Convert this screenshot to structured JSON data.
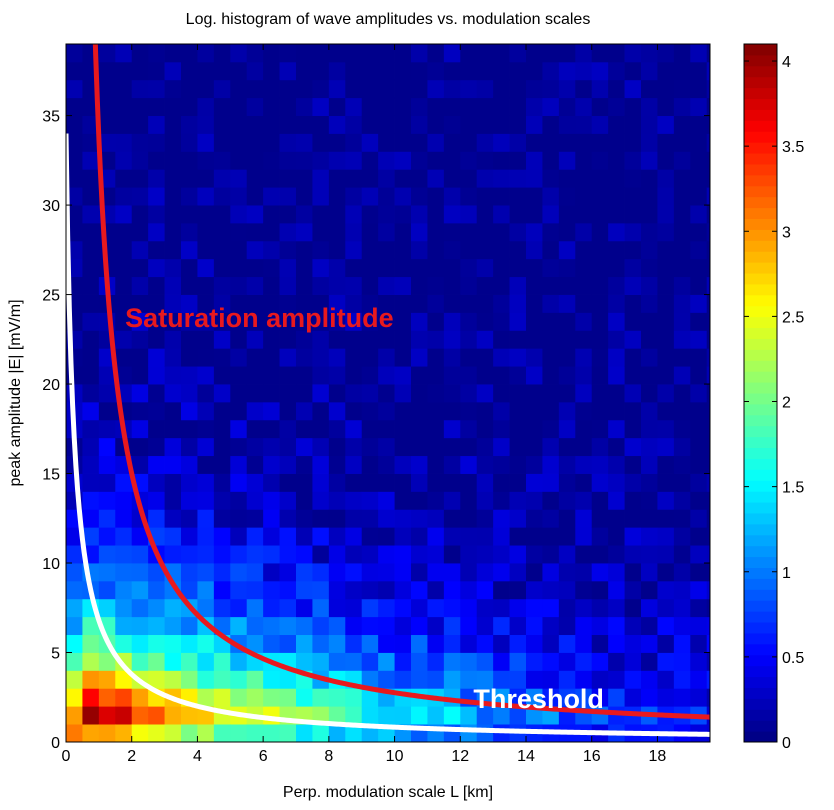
{
  "chart_data": {
    "type": "heatmap",
    "title": "Log. histogram of wave amplitudes vs. modulation scales",
    "xlabel": "Perp. modulation scale L [km]",
    "ylabel": "peak amplitude |E| [mV/m]",
    "xlim": [
      0,
      19.6
    ],
    "ylim": [
      0,
      39
    ],
    "x_ticks": [
      0,
      2,
      4,
      6,
      8,
      10,
      12,
      14,
      16,
      18
    ],
    "y_ticks": [
      0,
      5,
      10,
      15,
      20,
      25,
      30,
      35
    ],
    "colorbar": {
      "range": [
        0,
        4.1
      ],
      "ticks": [
        0,
        0.5,
        1,
        1.5,
        2,
        2.5,
        3,
        3.5,
        4
      ],
      "colormap": "jet"
    },
    "bin_size": {
      "x": 0.5,
      "y": 1
    },
    "histogram_model": {
      "description_of_counts": "log10 counts",
      "peak_value": 4.05,
      "peak_at": {
        "x": 0.75,
        "y": 1.5
      },
      "x_decay_scale": 9.5,
      "y_decay_scale": 5.5,
      "background_value": 0.05
    },
    "curves": [
      {
        "name": "Saturation amplitude",
        "color": "#e8191e",
        "form": "y = a / (x - x0)",
        "a": 27,
        "x0": 0.2,
        "label_position": {
          "x": 1.8,
          "y": 23.2
        }
      },
      {
        "name": "Threshold",
        "color": "#ffffff",
        "form": "y = a / (x - x0)",
        "a": 8.5,
        "x0": -0.25,
        "label_position": {
          "x": 12.4,
          "y": 1.9
        }
      }
    ],
    "grid": false
  }
}
